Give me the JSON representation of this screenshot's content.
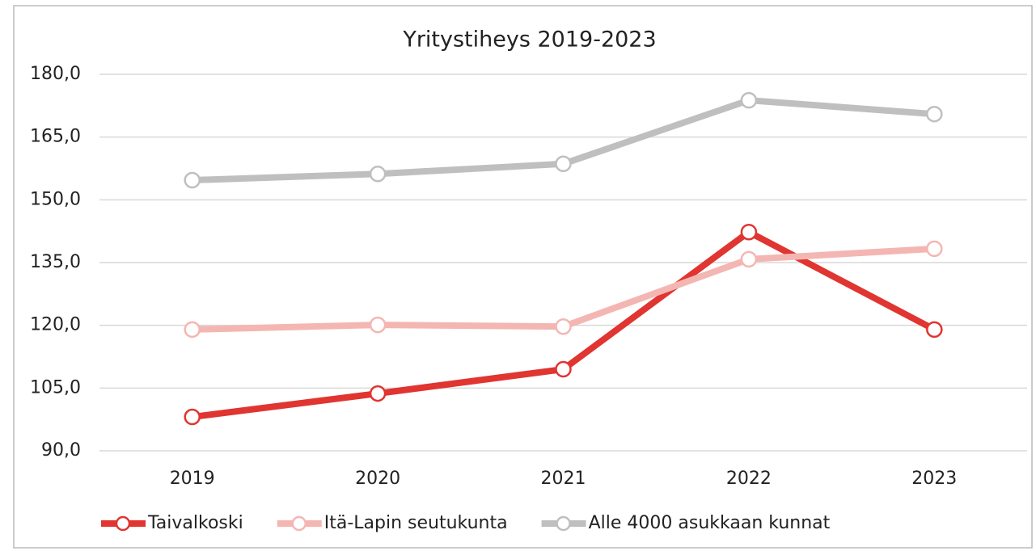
{
  "chart_data": {
    "type": "line",
    "title": "Yritystiheys 2019-2023",
    "categories": [
      "2019",
      "2020",
      "2021",
      "2022",
      "2023"
    ],
    "series": [
      {
        "name": "Taivalkoski",
        "color": "#e03530",
        "values": [
          98.1,
          103.7,
          109.5,
          142.3,
          119.0
        ]
      },
      {
        "name": "Itä-Lapin seutukunta",
        "color": "#f4b6b2",
        "values": [
          119.0,
          120.1,
          119.7,
          135.8,
          138.3
        ]
      },
      {
        "name": "Alle 4000 asukkaan kunnat",
        "color": "#bfbfbf",
        "values": [
          154.7,
          156.2,
          158.6,
          173.8,
          170.5
        ]
      }
    ],
    "ylim": [
      90,
      180
    ],
    "yticks": [
      {
        "value": 90,
        "label": "90,0"
      },
      {
        "value": 105,
        "label": "105,0"
      },
      {
        "value": 120,
        "label": "120,0"
      },
      {
        "value": 135,
        "label": "135,0"
      },
      {
        "value": 150,
        "label": "150,0"
      },
      {
        "value": 165,
        "label": "165,0"
      },
      {
        "value": 180,
        "label": "180,0"
      }
    ],
    "grid": true,
    "legend": "bottom"
  }
}
